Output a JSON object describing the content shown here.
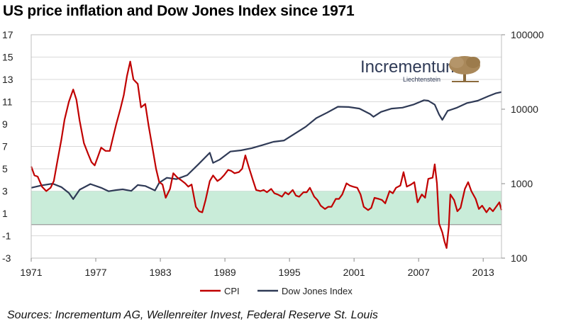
{
  "page": {
    "title": "US price inflation and Dow Jones Index since 1971",
    "source": "Sources: Incrementum AG, Wellenreiter Invest, Federal Reserve St. Louis",
    "logo": {
      "name": "Incrementum",
      "subtitle": "Liechtenstein"
    }
  },
  "colors": {
    "cpi": "#c00000",
    "dow": "#2f3a56",
    "band": "#c9ecd9",
    "grid": "#d9d9d9"
  },
  "chart_data": {
    "type": "line",
    "title": "US price inflation and Dow Jones Index since 1971",
    "x_ticks": [
      "1971",
      "1977",
      "1983",
      "1989",
      "1995",
      "2001",
      "2007",
      "2013"
    ],
    "xlim": [
      1971,
      2014.7
    ],
    "y_left": {
      "ticks": [
        "17",
        "15",
        "13",
        "11",
        "9",
        "7",
        "5",
        "3",
        "1",
        "-1",
        "-3"
      ],
      "lim": [
        -3,
        17
      ]
    },
    "y_right": {
      "scale": "log",
      "ticks": [
        "100000",
        "10000",
        "1000",
        "100"
      ],
      "lim": [
        100,
        100000
      ]
    },
    "grid": true,
    "legend": "bottom",
    "shaded_band": {
      "from": 0,
      "to": 3,
      "axis": "left"
    },
    "zero_line": 0,
    "series": [
      {
        "name": "CPI",
        "axis": "left",
        "points": [
          [
            1971.0,
            5.2
          ],
          [
            1971.3,
            4.4
          ],
          [
            1971.6,
            4.3
          ],
          [
            1972.0,
            3.4
          ],
          [
            1972.4,
            3.0
          ],
          [
            1972.8,
            3.3
          ],
          [
            1973.1,
            3.9
          ],
          [
            1973.4,
            5.5
          ],
          [
            1973.8,
            7.6
          ],
          [
            1974.1,
            9.4
          ],
          [
            1974.5,
            11.0
          ],
          [
            1974.9,
            12.1
          ],
          [
            1975.2,
            11.2
          ],
          [
            1975.5,
            9.3
          ],
          [
            1975.9,
            7.3
          ],
          [
            1976.3,
            6.3
          ],
          [
            1976.6,
            5.6
          ],
          [
            1976.9,
            5.3
          ],
          [
            1977.2,
            6.1
          ],
          [
            1977.5,
            6.9
          ],
          [
            1977.9,
            6.6
          ],
          [
            1978.3,
            6.6
          ],
          [
            1978.6,
            7.8
          ],
          [
            1978.9,
            9.0
          ],
          [
            1979.3,
            10.4
          ],
          [
            1979.6,
            11.6
          ],
          [
            1979.9,
            13.3
          ],
          [
            1980.2,
            14.6
          ],
          [
            1980.5,
            13.0
          ],
          [
            1980.9,
            12.6
          ],
          [
            1981.2,
            10.5
          ],
          [
            1981.6,
            10.8
          ],
          [
            1981.9,
            8.9
          ],
          [
            1982.3,
            6.7
          ],
          [
            1982.6,
            5.0
          ],
          [
            1982.9,
            3.8
          ],
          [
            1983.2,
            3.6
          ],
          [
            1983.5,
            2.4
          ],
          [
            1983.9,
            3.2
          ],
          [
            1984.2,
            4.6
          ],
          [
            1984.6,
            4.2
          ],
          [
            1984.9,
            4.0
          ],
          [
            1985.3,
            3.7
          ],
          [
            1985.6,
            3.4
          ],
          [
            1985.9,
            3.6
          ],
          [
            1986.3,
            1.6
          ],
          [
            1986.6,
            1.2
          ],
          [
            1986.9,
            1.1
          ],
          [
            1987.2,
            2.2
          ],
          [
            1987.6,
            3.9
          ],
          [
            1987.9,
            4.4
          ],
          [
            1988.3,
            3.9
          ],
          [
            1988.6,
            4.1
          ],
          [
            1988.9,
            4.4
          ],
          [
            1989.3,
            4.9
          ],
          [
            1989.6,
            4.8
          ],
          [
            1989.9,
            4.6
          ],
          [
            1990.3,
            4.7
          ],
          [
            1990.6,
            5.0
          ],
          [
            1990.9,
            6.2
          ],
          [
            1991.2,
            5.2
          ],
          [
            1991.6,
            4.0
          ],
          [
            1991.9,
            3.1
          ],
          [
            1992.3,
            3.0
          ],
          [
            1992.6,
            3.1
          ],
          [
            1992.9,
            2.9
          ],
          [
            1993.3,
            3.2
          ],
          [
            1993.6,
            2.8
          ],
          [
            1993.9,
            2.7
          ],
          [
            1994.3,
            2.5
          ],
          [
            1994.6,
            2.9
          ],
          [
            1994.9,
            2.7
          ],
          [
            1995.3,
            3.1
          ],
          [
            1995.6,
            2.6
          ],
          [
            1995.9,
            2.5
          ],
          [
            1996.3,
            2.9
          ],
          [
            1996.6,
            2.9
          ],
          [
            1996.9,
            3.3
          ],
          [
            1997.3,
            2.5
          ],
          [
            1997.6,
            2.2
          ],
          [
            1997.9,
            1.7
          ],
          [
            1998.3,
            1.4
          ],
          [
            1998.6,
            1.6
          ],
          [
            1998.9,
            1.6
          ],
          [
            1999.3,
            2.3
          ],
          [
            1999.6,
            2.3
          ],
          [
            1999.9,
            2.7
          ],
          [
            2000.3,
            3.7
          ],
          [
            2000.6,
            3.5
          ],
          [
            2000.9,
            3.4
          ],
          [
            2001.3,
            3.3
          ],
          [
            2001.6,
            2.7
          ],
          [
            2001.9,
            1.6
          ],
          [
            2002.3,
            1.3
          ],
          [
            2002.6,
            1.5
          ],
          [
            2002.9,
            2.4
          ],
          [
            2003.3,
            2.3
          ],
          [
            2003.6,
            2.2
          ],
          [
            2003.9,
            1.9
          ],
          [
            2004.3,
            3.0
          ],
          [
            2004.6,
            2.8
          ],
          [
            2004.9,
            3.3
          ],
          [
            2005.3,
            3.5
          ],
          [
            2005.6,
            4.7
          ],
          [
            2005.9,
            3.4
          ],
          [
            2006.3,
            3.6
          ],
          [
            2006.6,
            3.8
          ],
          [
            2006.9,
            2.0
          ],
          [
            2007.3,
            2.7
          ],
          [
            2007.6,
            2.4
          ],
          [
            2007.9,
            4.1
          ],
          [
            2008.3,
            4.2
          ],
          [
            2008.5,
            5.4
          ],
          [
            2008.7,
            3.7
          ],
          [
            2008.9,
            0.1
          ],
          [
            2009.2,
            -0.7
          ],
          [
            2009.4,
            -1.5
          ],
          [
            2009.6,
            -2.1
          ],
          [
            2009.8,
            -0.2
          ],
          [
            2009.95,
            2.7
          ],
          [
            2010.3,
            2.2
          ],
          [
            2010.6,
            1.2
          ],
          [
            2010.9,
            1.5
          ],
          [
            2011.3,
            3.2
          ],
          [
            2011.6,
            3.8
          ],
          [
            2011.9,
            3.0
          ],
          [
            2012.3,
            2.3
          ],
          [
            2012.6,
            1.4
          ],
          [
            2012.9,
            1.7
          ],
          [
            2013.3,
            1.1
          ],
          [
            2013.6,
            1.5
          ],
          [
            2013.9,
            1.2
          ],
          [
            2014.2,
            1.6
          ],
          [
            2014.5,
            2.0
          ],
          [
            2014.7,
            1.3
          ]
        ]
      },
      {
        "name": "Dow Jones Index",
        "axis": "right",
        "points": [
          [
            1971.0,
            880
          ],
          [
            1972.0,
            950
          ],
          [
            1973.0,
            1000
          ],
          [
            1973.8,
            900
          ],
          [
            1974.5,
            750
          ],
          [
            1974.9,
            620
          ],
          [
            1975.5,
            830
          ],
          [
            1976.5,
            990
          ],
          [
            1977.5,
            880
          ],
          [
            1978.2,
            790
          ],
          [
            1978.9,
            820
          ],
          [
            1979.5,
            840
          ],
          [
            1980.3,
            800
          ],
          [
            1980.9,
            960
          ],
          [
            1981.6,
            930
          ],
          [
            1982.5,
            810
          ],
          [
            1982.9,
            1030
          ],
          [
            1983.6,
            1200
          ],
          [
            1984.5,
            1150
          ],
          [
            1985.5,
            1300
          ],
          [
            1986.5,
            1800
          ],
          [
            1987.6,
            2600
          ],
          [
            1987.9,
            1900
          ],
          [
            1988.5,
            2100
          ],
          [
            1989.5,
            2700
          ],
          [
            1990.5,
            2800
          ],
          [
            1991.5,
            3000
          ],
          [
            1992.5,
            3300
          ],
          [
            1993.5,
            3650
          ],
          [
            1994.5,
            3800
          ],
          [
            1995.5,
            4700
          ],
          [
            1996.5,
            5800
          ],
          [
            1997.5,
            7600
          ],
          [
            1998.5,
            9000
          ],
          [
            1999.5,
            10800
          ],
          [
            2000.5,
            10700
          ],
          [
            2001.5,
            10200
          ],
          [
            2002.5,
            8600
          ],
          [
            2002.8,
            7900
          ],
          [
            2003.5,
            9200
          ],
          [
            2004.5,
            10200
          ],
          [
            2005.5,
            10500
          ],
          [
            2006.5,
            11500
          ],
          [
            2007.5,
            13200
          ],
          [
            2007.9,
            13000
          ],
          [
            2008.5,
            11500
          ],
          [
            2008.9,
            8500
          ],
          [
            2009.2,
            7200
          ],
          [
            2009.7,
            9500
          ],
          [
            2010.5,
            10400
          ],
          [
            2011.5,
            12100
          ],
          [
            2012.5,
            13000
          ],
          [
            2013.5,
            15000
          ],
          [
            2014.2,
            16400
          ],
          [
            2014.7,
            17000
          ]
        ]
      }
    ]
  }
}
